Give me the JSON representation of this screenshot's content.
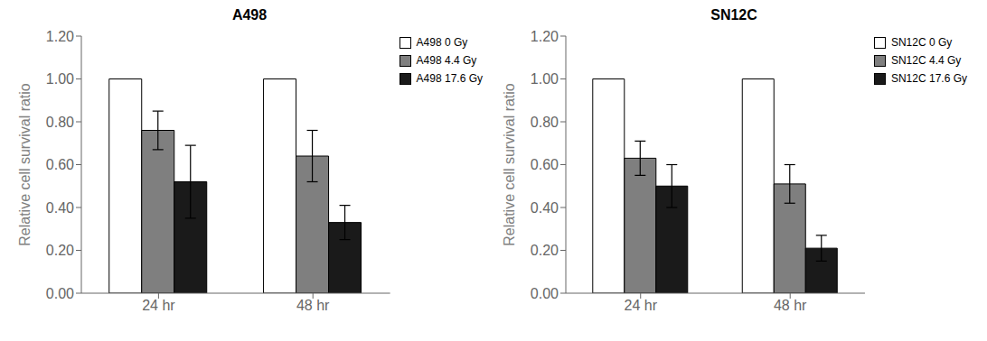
{
  "chart_data": [
    {
      "type": "bar",
      "title": "A498",
      "ylabel": "Relative cell survival ratio",
      "categories": [
        "24 hr",
        "48 hr"
      ],
      "series": [
        {
          "name": "A498 0 Gy",
          "color": "#ffffff",
          "values": [
            1.0,
            1.0
          ],
          "errors": [
            0.0,
            0.0
          ]
        },
        {
          "name": "A498 4.4 Gy",
          "color": "#7f7f7f",
          "values": [
            0.76,
            0.64
          ],
          "errors": [
            0.09,
            0.12
          ]
        },
        {
          "name": "A498 17.6 Gy",
          "color": "#1a1a1a",
          "values": [
            0.52,
            0.33
          ],
          "errors": [
            0.17,
            0.08
          ]
        }
      ],
      "ylim": [
        0,
        1.2
      ],
      "yticks": [
        {
          "value": 0,
          "label": "0.00"
        },
        {
          "value": 0.2,
          "label": "0.20"
        },
        {
          "value": 0.4,
          "label": "0.40"
        },
        {
          "value": 0.6,
          "label": "0.60"
        },
        {
          "value": 0.8,
          "label": "0.80"
        },
        {
          "value": 1.0,
          "label": "1.00"
        },
        {
          "value": 1.2,
          "label": "1.20"
        }
      ],
      "grid": false,
      "legend": "upper right"
    },
    {
      "type": "bar",
      "title": "SN12C",
      "ylabel": "Relative cell survival ratio",
      "categories": [
        "24 hr",
        "48 hr"
      ],
      "series": [
        {
          "name": "SN12C 0 Gy",
          "color": "#ffffff",
          "values": [
            1.0,
            1.0
          ],
          "errors": [
            0.0,
            0.0
          ]
        },
        {
          "name": "SN12C 4.4 Gy",
          "color": "#7f7f7f",
          "values": [
            0.63,
            0.51
          ],
          "errors": [
            0.08,
            0.09
          ]
        },
        {
          "name": "SN12C 17.6 Gy",
          "color": "#1a1a1a",
          "values": [
            0.5,
            0.21
          ],
          "errors": [
            0.1,
            0.06
          ]
        }
      ],
      "ylim": [
        0,
        1.2
      ],
      "yticks": [
        {
          "value": 0,
          "label": "0.00"
        },
        {
          "value": 0.2,
          "label": "0.20"
        },
        {
          "value": 0.4,
          "label": "0.40"
        },
        {
          "value": 0.6,
          "label": "0.60"
        },
        {
          "value": 0.8,
          "label": "0.80"
        },
        {
          "value": 1.0,
          "label": "1.00"
        },
        {
          "value": 1.2,
          "label": "1.20"
        }
      ],
      "grid": false,
      "legend": "upper right"
    }
  ]
}
